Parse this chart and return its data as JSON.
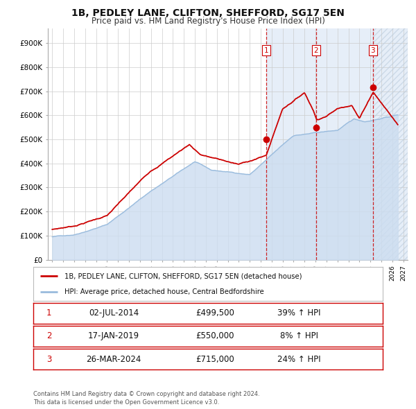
{
  "title": "1B, PEDLEY LANE, CLIFTON, SHEFFORD, SG17 5EN",
  "subtitle": "Price paid vs. HM Land Registry's House Price Index (HPI)",
  "hpi_label": "HPI: Average price, detached house, Central Bedfordshire",
  "property_label": "1B, PEDLEY LANE, CLIFTON, SHEFFORD, SG17 5EN (detached house)",
  "property_color": "#cc0000",
  "hpi_color": "#99bbdd",
  "hpi_fill_color": "#ccddf0",
  "sale_display": [
    {
      "num": "1",
      "date": "02-JUL-2014",
      "price": "£499,500",
      "pct": "39% ↑ HPI"
    },
    {
      "num": "2",
      "date": "17-JAN-2019",
      "price": "£550,000",
      "pct": "8% ↑ HPI"
    },
    {
      "num": "3",
      "date": "26-MAR-2024",
      "price": "£715,000",
      "pct": "24% ↑ HPI"
    }
  ],
  "sale_years": [
    2014.503,
    2019.044,
    2024.229
  ],
  "sale_prices": [
    499500,
    550000,
    715000
  ],
  "ylabel_ticks": [
    "£0",
    "£100K",
    "£200K",
    "£300K",
    "£400K",
    "£500K",
    "£600K",
    "£700K",
    "£800K",
    "£900K"
  ],
  "ytick_values": [
    0,
    100000,
    200000,
    300000,
    400000,
    500000,
    600000,
    700000,
    800000,
    900000
  ],
  "xlim_start": 1994.6,
  "xlim_end": 2027.4,
  "ylim_min": 0,
  "ylim_max": 960000,
  "footer": "Contains HM Land Registry data © Crown copyright and database right 2024.\nThis data is licensed under the Open Government Licence v3.0.",
  "background_color": "#ffffff",
  "plot_bg_color": "#ffffff",
  "shaded_start": 2014.503,
  "shaded_end": 2027.4,
  "shaded_color": "#e6eef8",
  "hatch_start": 2024.229,
  "hatch_end": 2027.4
}
